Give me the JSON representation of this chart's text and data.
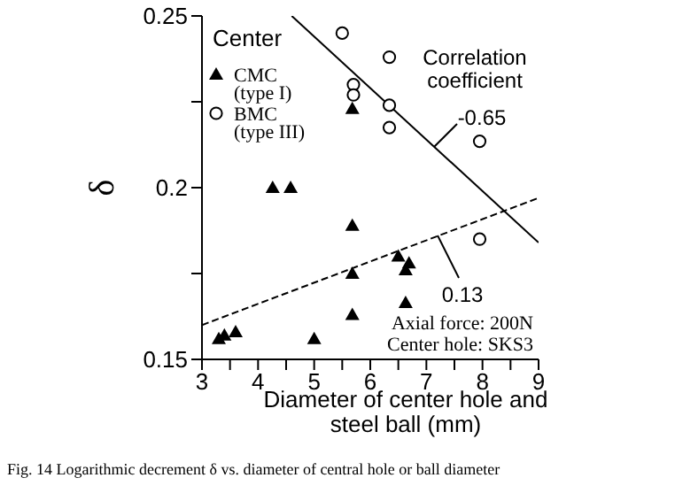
{
  "chart_data": {
    "type": "scatter",
    "title": "Fig. 14    Logarithmic decrement δ vs. diameter of central hole or ball diameter",
    "xlabel": "Diameter of center hole and steel ball  (mm)",
    "ylabel": "δ",
    "xlim": [
      3,
      9
    ],
    "xticks": [
      3,
      {
        "value": 3.5,
        "label": null
      },
      4,
      {
        "value": 4.5,
        "label": null
      },
      5,
      {
        "value": 5.5,
        "label": null
      },
      6,
      {
        "value": 6.5,
        "label": null
      },
      7,
      {
        "value": 7.5,
        "label": null
      },
      8,
      {
        "value": 8.5,
        "label": null
      },
      9
    ],
    "ylim": [
      0.15,
      0.25
    ],
    "yticks": [
      0.15,
      {
        "value": 0.175,
        "label": null
      },
      0.2,
      {
        "value": 0.225,
        "label": null
      },
      0.25
    ],
    "legend": "top left",
    "legend_title": "Center",
    "series": [
      {
        "name": "CMC (type I)",
        "color": "#000000",
        "marker": "triangle",
        "x": [
          5.68,
          4.26,
          4.58,
          5.68,
          6.5,
          6.69,
          6.63,
          5.68,
          6.63,
          5.68,
          5.0,
          3.3,
          3.4,
          3.6
        ],
        "values": [
          0.223,
          0.2,
          0.2,
          0.189,
          0.18,
          0.178,
          0.176,
          0.175,
          0.1665,
          0.163,
          0.156,
          0.156,
          0.157,
          0.158
        ]
      },
      {
        "name": "BMC (type III)",
        "color": "#000000",
        "marker": "circle",
        "x": [
          5.5,
          6.34,
          5.7,
          5.7,
          6.34,
          6.34,
          7.95,
          7.95
        ],
        "values": [
          0.245,
          0.238,
          0.23,
          0.227,
          0.224,
          0.2175,
          0.2135,
          0.185
        ]
      },
      {
        "type": "line",
        "color": "#000000",
        "line_style": "solid",
        "marker": "none",
        "x": [
          4.6,
          9
        ],
        "values": [
          0.25,
          0.184
        ]
      },
      {
        "type": "line",
        "color": "#000000",
        "line_style": "dashed",
        "marker": "none",
        "x": [
          3,
          9
        ],
        "values": [
          0.16,
          0.197
        ]
      }
    ],
    "annotations": [
      "Correlation coefficient",
      "-0.65",
      "0.13",
      "Axial force: 200N",
      "Center hole: SKS3"
    ]
  }
}
